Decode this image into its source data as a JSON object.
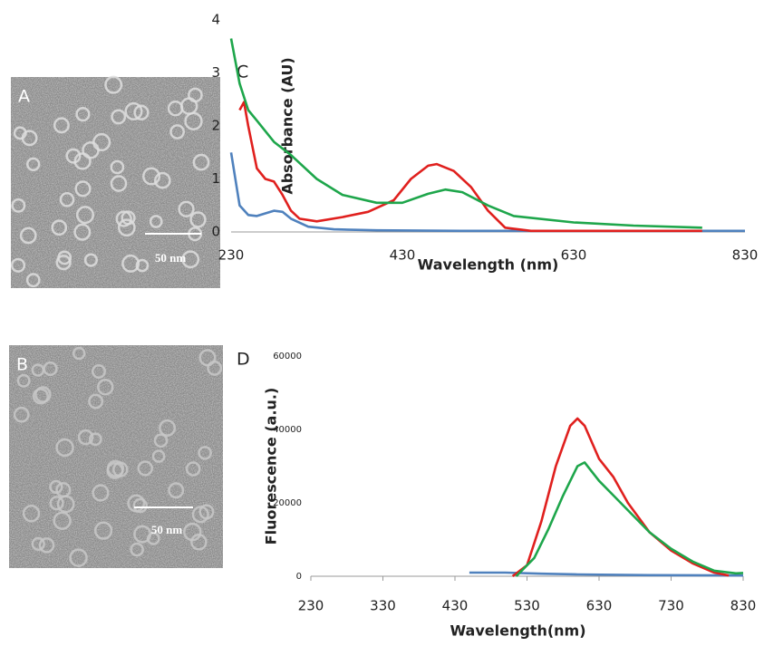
{
  "images": [
    {
      "label": "A",
      "scale_label": "50 nm"
    },
    {
      "label": "B",
      "scale_label": "50 nm"
    }
  ],
  "chart_data": [
    {
      "type": "line",
      "panel_label": "C",
      "x_label": "Wavelength (nm)",
      "y_label": "Absorbance (AU)",
      "xlim": [
        230,
        830
      ],
      "xticks": [
        230,
        430,
        630,
        830
      ],
      "ylim": [
        0,
        4
      ],
      "yticks": [
        0,
        1,
        2,
        3,
        4
      ],
      "grid": false,
      "series": [
        {
          "color": "#4f81bd",
          "x": [
            230,
            240,
            250,
            260,
            270,
            280,
            290,
            300,
            320,
            350,
            400,
            500,
            830
          ],
          "values": [
            1.5,
            0.5,
            0.32,
            0.3,
            0.35,
            0.4,
            0.38,
            0.25,
            0.1,
            0.05,
            0.03,
            0.02,
            0.02
          ]
        },
        {
          "color": "#e0201e",
          "x": [
            240,
            245,
            250,
            260,
            270,
            280,
            290,
            300,
            310,
            330,
            360,
            390,
            420,
            440,
            460,
            470,
            490,
            510,
            530,
            550,
            580,
            780
          ],
          "values": [
            2.3,
            2.45,
            2.0,
            1.2,
            1.0,
            0.95,
            0.7,
            0.4,
            0.25,
            0.2,
            0.28,
            0.38,
            0.6,
            1.0,
            1.25,
            1.28,
            1.15,
            0.85,
            0.4,
            0.08,
            0.02,
            0.02
          ]
        },
        {
          "color": "#1ea64b",
          "x": [
            230,
            240,
            250,
            260,
            280,
            300,
            330,
            360,
            400,
            430,
            460,
            480,
            500,
            530,
            560,
            630,
            700,
            780
          ],
          "values": [
            3.65,
            2.8,
            2.3,
            2.1,
            1.7,
            1.45,
            1.0,
            0.7,
            0.55,
            0.55,
            0.72,
            0.8,
            0.75,
            0.5,
            0.3,
            0.18,
            0.12,
            0.08
          ]
        }
      ]
    },
    {
      "type": "line",
      "panel_label": "D",
      "x_label": "Wavelength(nm)",
      "y_label": "Fluorescence (a.u.)",
      "xlim": [
        230,
        830
      ],
      "xticks": [
        230,
        330,
        430,
        530,
        630,
        730,
        830
      ],
      "ylim": [
        0,
        60000
      ],
      "yticks": [
        0,
        20000,
        40000,
        60000
      ],
      "grid": false,
      "series": [
        {
          "color": "#4f81bd",
          "x": [
            450,
            500,
            550,
            600,
            700,
            830
          ],
          "values": [
            1000,
            1000,
            700,
            500,
            300,
            200
          ]
        },
        {
          "color": "#e0201e",
          "x": [
            510,
            530,
            550,
            570,
            590,
            600,
            610,
            630,
            650,
            670,
            700,
            730,
            760,
            790,
            810
          ],
          "values": [
            0,
            3000,
            15000,
            30000,
            41000,
            43000,
            41000,
            32000,
            27000,
            20000,
            12000,
            7000,
            3500,
            1000,
            200
          ]
        },
        {
          "color": "#1ea64b",
          "x": [
            515,
            540,
            560,
            580,
            600,
            610,
            630,
            650,
            670,
            700,
            730,
            760,
            790,
            820,
            830
          ],
          "values": [
            0,
            5000,
            13000,
            22000,
            30000,
            31000,
            26000,
            22000,
            18000,
            12000,
            7500,
            4000,
            1500,
            800,
            900
          ]
        }
      ]
    }
  ]
}
